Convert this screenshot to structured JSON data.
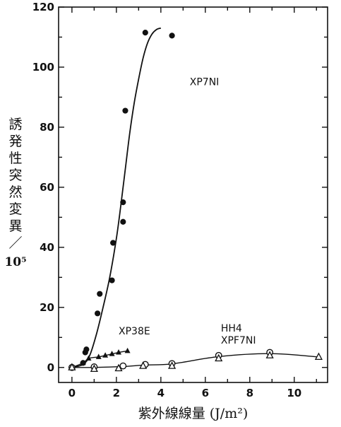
{
  "chart_data": {
    "type": "scatter",
    "title": "",
    "xlabel": "紫外線線量 (J/m²)",
    "ylabel_chars": [
      "誘",
      "発",
      "性",
      "突",
      "然",
      "変",
      "異",
      "／"
    ],
    "ylabel_tail": "10⁵",
    "xlim": [
      -0.6,
      11.5
    ],
    "ylim": [
      -5,
      120
    ],
    "x_ticks": [
      0,
      2,
      4,
      6,
      8,
      10
    ],
    "y_ticks": [
      0,
      20,
      40,
      60,
      80,
      100,
      120
    ],
    "grid": false,
    "series": [
      {
        "name": "XP7NI",
        "marker": "filled-circle",
        "points": [
          [
            0,
            0
          ],
          [
            0.5,
            1.5
          ],
          [
            0.6,
            5
          ],
          [
            0.65,
            6
          ],
          [
            1.15,
            18
          ],
          [
            1.25,
            24.5
          ],
          [
            1.8,
            29
          ],
          [
            1.85,
            41.5
          ],
          [
            2.3,
            48.5
          ],
          [
            2.3,
            55
          ],
          [
            2.4,
            85.5
          ],
          [
            3.3,
            111.5
          ],
          [
            4.5,
            110.5
          ]
        ],
        "curve": [
          [
            0,
            0
          ],
          [
            0.5,
            1
          ],
          [
            0.8,
            4
          ],
          [
            1.1,
            11
          ],
          [
            1.4,
            20
          ],
          [
            1.7,
            30
          ],
          [
            2.0,
            43
          ],
          [
            2.2,
            54
          ],
          [
            2.4,
            66
          ],
          [
            2.6,
            78
          ],
          [
            2.8,
            88
          ],
          [
            3.0,
            96
          ],
          [
            3.2,
            103
          ],
          [
            3.4,
            108
          ],
          [
            3.6,
            111
          ],
          [
            3.8,
            112.5
          ],
          [
            4.0,
            113
          ]
        ]
      },
      {
        "name": "XP38E",
        "marker": "filled-triangle",
        "points": [
          [
            0,
            0
          ],
          [
            0.5,
            1.5
          ],
          [
            0.75,
            3
          ],
          [
            1.2,
            3.5
          ],
          [
            1.5,
            4
          ],
          [
            1.8,
            4.5
          ],
          [
            2.1,
            5
          ],
          [
            2.5,
            5.5
          ]
        ]
      },
      {
        "name": "HH4 / XPF7NI",
        "marker": "open-circle",
        "points": [
          [
            0,
            0
          ],
          [
            1.0,
            0.2
          ],
          [
            2.3,
            0.5
          ],
          [
            3.3,
            1.0
          ],
          [
            4.5,
            1.3
          ],
          [
            6.6,
            4.0
          ],
          [
            8.9,
            5.0
          ]
        ]
      },
      {
        "name": "HH4 / XPF7NI",
        "marker": "open-triangle",
        "points": [
          [
            0,
            0
          ],
          [
            1.0,
            -0.5
          ],
          [
            2.1,
            -0.3
          ],
          [
            3.2,
            0.5
          ],
          [
            4.5,
            0.5
          ],
          [
            6.6,
            3.0
          ],
          [
            8.9,
            4.0
          ],
          [
            11.1,
            3.5
          ]
        ]
      }
    ],
    "annotations": [
      {
        "text": "XP7NI",
        "x": 5.3,
        "y": 94
      },
      {
        "text": "XP38E",
        "x": 2.1,
        "y": 11
      },
      {
        "text": "HH4",
        "x": 6.7,
        "y": 12
      },
      {
        "text": "XPF7NI",
        "x": 6.7,
        "y": 8
      }
    ]
  }
}
